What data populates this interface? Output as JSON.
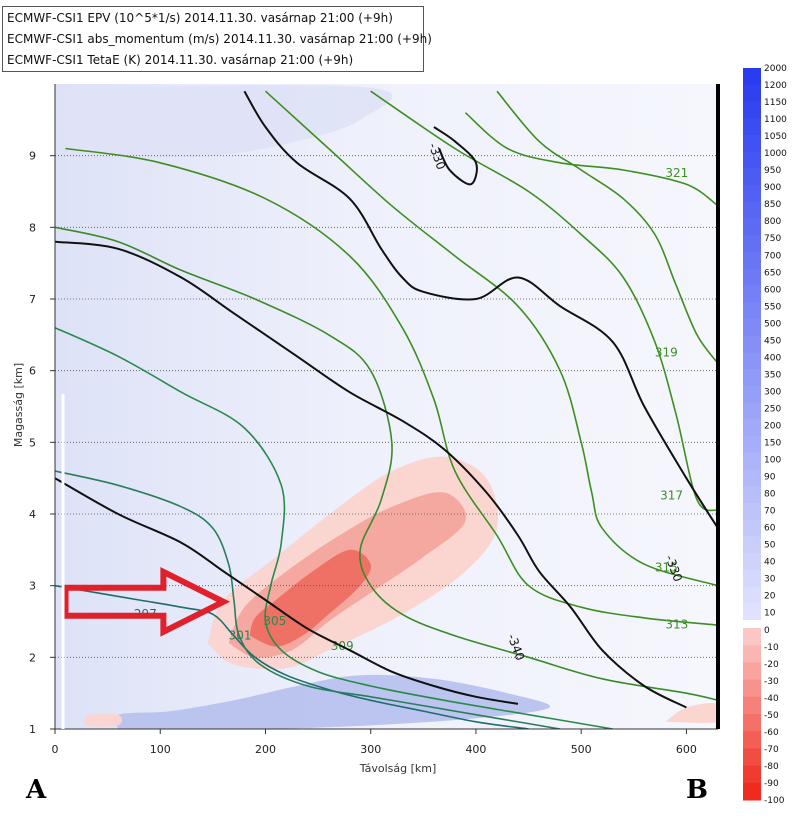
{
  "legend": {
    "lines": [
      "ECMWF-CSI1 EPV (10^5*1/s) 2014.11.30. vasárnap 21:00 (+9h)",
      "ECMWF-CSI1 abs_momentum (m/s) 2014.11.30. vasárnap 21:00 (+9h)",
      "ECMWF-CSI1 TetaE (K) 2014.11.30. vasárnap 21:00 (+9h)"
    ]
  },
  "corners": {
    "left": "A",
    "right": "B"
  },
  "chart_data": {
    "type": "heatmap",
    "xlabel": "Távolság [km]",
    "ylabel": "Magasság [km]",
    "xlim": [
      0,
      630
    ],
    "ylim": [
      1,
      10
    ],
    "x_ticks": [
      0,
      100,
      200,
      300,
      400,
      500,
      600
    ],
    "y_ticks": [
      1,
      2,
      3,
      4,
      5,
      6,
      7,
      8,
      9
    ],
    "grid": "dotted horizontal at each km",
    "colorbar": {
      "labels": [
        "2000",
        "1200",
        "1150",
        "1100",
        "1050",
        "1000",
        "950",
        "900",
        "850",
        "800",
        "750",
        "700",
        "650",
        "600",
        "550",
        "500",
        "450",
        "400",
        "350",
        "300",
        "250",
        "200",
        "150",
        "100",
        "90",
        "80",
        "70",
        "60",
        "50",
        "40",
        "30",
        "20",
        "10",
        "0",
        "-10",
        "-20",
        "-30",
        "-40",
        "-50",
        "-60",
        "-70",
        "-80",
        "-90",
        "-100"
      ],
      "positive_color": "#2a3cf0",
      "negative_color": "#f02a1e"
    },
    "epv_regions": [
      {
        "kind": "positive-strong",
        "color": "#b8c2ee",
        "polygon": [
          [
            60,
            1.0
          ],
          [
            120,
            1.0
          ],
          [
            200,
            1.0
          ],
          [
            300,
            1.05
          ],
          [
            400,
            1.15
          ],
          [
            470,
            1.3
          ],
          [
            430,
            1.5
          ],
          [
            360,
            1.7
          ],
          [
            290,
            1.75
          ],
          [
            230,
            1.6
          ],
          [
            170,
            1.4
          ],
          [
            110,
            1.25
          ],
          [
            60,
            1.2
          ]
        ]
      },
      {
        "kind": "positive-light",
        "color": "#dfe3f7",
        "polygon": [
          [
            10,
            9.95
          ],
          [
            300,
            9.95
          ],
          [
            290,
            9.5
          ],
          [
            230,
            9.2
          ],
          [
            150,
            9.0
          ],
          [
            60,
            9.0
          ],
          [
            10,
            9.2
          ]
        ]
      },
      {
        "kind": "negative-weak",
        "color": "#fbd4cf",
        "polygon": [
          [
            145,
            2.2
          ],
          [
            170,
            1.9
          ],
          [
            220,
            1.85
          ],
          [
            260,
            2.1
          ],
          [
            330,
            2.6
          ],
          [
            390,
            3.2
          ],
          [
            420,
            3.8
          ],
          [
            410,
            4.5
          ],
          [
            370,
            4.8
          ],
          [
            320,
            4.6
          ],
          [
            270,
            4.1
          ],
          [
            210,
            3.4
          ],
          [
            160,
            2.8
          ]
        ]
      },
      {
        "kind": "negative-medium",
        "color": "#f4a59c",
        "polygon": [
          [
            165,
            2.2
          ],
          [
            190,
            2.0
          ],
          [
            225,
            2.1
          ],
          [
            260,
            2.5
          ],
          [
            300,
            2.9
          ],
          [
            350,
            3.4
          ],
          [
            390,
            3.9
          ],
          [
            370,
            4.3
          ],
          [
            320,
            4.1
          ],
          [
            270,
            3.7
          ],
          [
            220,
            3.2
          ],
          [
            180,
            2.7
          ]
        ]
      },
      {
        "kind": "negative-strong",
        "color": "#ee6e62",
        "polygon": [
          [
            185,
            2.3
          ],
          [
            210,
            2.15
          ],
          [
            235,
            2.3
          ],
          [
            260,
            2.6
          ],
          [
            290,
            3.0
          ],
          [
            300,
            3.3
          ],
          [
            280,
            3.5
          ],
          [
            245,
            3.2
          ],
          [
            210,
            2.8
          ],
          [
            190,
            2.55
          ]
        ]
      },
      {
        "kind": "negative-weak",
        "color": "#fbd4cf",
        "polygon": [
          [
            30,
            1.2
          ],
          [
            60,
            1.2
          ],
          [
            60,
            1.05
          ],
          [
            30,
            1.05
          ]
        ]
      },
      {
        "kind": "negative-weak",
        "color": "#fbd4cf",
        "polygon": [
          [
            580,
            1.1
          ],
          [
            630,
            1.1
          ],
          [
            630,
            1.35
          ],
          [
            600,
            1.3
          ]
        ]
      }
    ],
    "thetae_contours": [
      {
        "label": "297",
        "color": "#1e6e6e",
        "points": [
          [
            0,
            3.0
          ],
          [
            40,
            2.9
          ],
          [
            80,
            2.8
          ],
          [
            120,
            2.7
          ],
          [
            150,
            2.6
          ],
          [
            170,
            2.3
          ],
          [
            190,
            2.0
          ],
          [
            220,
            1.75
          ],
          [
            260,
            1.55
          ],
          [
            300,
            1.4
          ],
          [
            350,
            1.25
          ],
          [
            400,
            1.1
          ],
          [
            450,
            1.0
          ]
        ],
        "label_at": [
          75,
          2.55
        ]
      },
      {
        "label": "301",
        "color": "#2a7e5a",
        "points": [
          [
            0,
            4.6
          ],
          [
            60,
            4.4
          ],
          [
            120,
            4.1
          ],
          [
            150,
            3.8
          ],
          [
            165,
            3.3
          ],
          [
            170,
            2.8
          ],
          [
            175,
            2.3
          ],
          [
            195,
            1.9
          ],
          [
            240,
            1.6
          ],
          [
            300,
            1.45
          ],
          [
            360,
            1.3
          ],
          [
            420,
            1.15
          ],
          [
            480,
            1.0
          ]
        ],
        "label_at": [
          165,
          2.25
        ]
      },
      {
        "label": "305",
        "color": "#2a8a4a",
        "points": [
          [
            0,
            6.6
          ],
          [
            60,
            6.2
          ],
          [
            120,
            5.7
          ],
          [
            180,
            5.2
          ],
          [
            215,
            4.4
          ],
          [
            215,
            3.6
          ],
          [
            205,
            3.0
          ],
          [
            200,
            2.5
          ],
          [
            215,
            2.1
          ],
          [
            250,
            1.8
          ],
          [
            300,
            1.6
          ],
          [
            370,
            1.4
          ],
          [
            450,
            1.2
          ],
          [
            530,
            1.0
          ]
        ],
        "label_at": [
          198,
          2.45
        ]
      },
      {
        "label": "309",
        "color": "#3a8a2a",
        "points": [
          [
            0,
            8.0
          ],
          [
            60,
            7.8
          ],
          [
            120,
            7.4
          ],
          [
            190,
            7.0
          ],
          [
            260,
            6.5
          ],
          [
            300,
            6.0
          ],
          [
            320,
            5.0
          ],
          [
            310,
            4.2
          ],
          [
            290,
            3.5
          ],
          [
            300,
            3.0
          ],
          [
            330,
            2.6
          ],
          [
            380,
            2.3
          ],
          [
            450,
            2.0
          ],
          [
            520,
            1.7
          ],
          [
            600,
            1.5
          ],
          [
            630,
            1.4
          ]
        ],
        "label_at": [
          262,
          2.1
        ]
      },
      {
        "label": "313",
        "color": "#3e8e22",
        "points": [
          [
            10,
            9.1
          ],
          [
            100,
            8.9
          ],
          [
            200,
            8.4
          ],
          [
            280,
            7.6
          ],
          [
            330,
            6.6
          ],
          [
            360,
            5.6
          ],
          [
            380,
            4.6
          ],
          [
            420,
            3.7
          ],
          [
            450,
            3.0
          ],
          [
            500,
            2.7
          ],
          [
            560,
            2.55
          ],
          [
            630,
            2.45
          ]
        ],
        "label_at": [
          580,
          2.4
        ]
      },
      {
        "label": "315",
        "color": "#3e8e22",
        "points": [
          [
            200,
            9.9
          ],
          [
            260,
            9.1
          ],
          [
            320,
            8.3
          ],
          [
            380,
            7.6
          ],
          [
            440,
            6.9
          ],
          [
            480,
            6.0
          ],
          [
            500,
            5.0
          ],
          [
            510,
            4.3
          ],
          [
            520,
            3.8
          ],
          [
            560,
            3.3
          ],
          [
            630,
            3.0
          ]
        ],
        "label_at": [
          570,
          3.2
        ]
      },
      {
        "label": "317",
        "color": "#3e8e22",
        "points": [
          [
            300,
            9.9
          ],
          [
            380,
            9.1
          ],
          [
            450,
            8.5
          ],
          [
            500,
            7.9
          ],
          [
            540,
            7.3
          ],
          [
            570,
            6.4
          ],
          [
            590,
            5.4
          ],
          [
            610,
            4.2
          ],
          [
            630,
            4.05
          ]
        ],
        "label_at": [
          575,
          4.2
        ]
      },
      {
        "label": "319",
        "color": "#3e8e22",
        "points": [
          [
            420,
            9.9
          ],
          [
            460,
            9.2
          ],
          [
            500,
            8.8
          ],
          [
            540,
            8.4
          ],
          [
            570,
            7.9
          ],
          [
            590,
            7.2
          ],
          [
            610,
            6.5
          ],
          [
            630,
            6.1
          ]
        ],
        "label_at": [
          570,
          6.2
        ]
      },
      {
        "label": "321",
        "color": "#3e8e22",
        "points": [
          [
            390,
            9.6
          ],
          [
            430,
            9.1
          ],
          [
            480,
            8.9
          ],
          [
            540,
            8.8
          ],
          [
            600,
            8.6
          ],
          [
            630,
            8.3
          ]
        ],
        "label_at": [
          580,
          8.7
        ]
      }
    ],
    "momentum_contours": [
      {
        "label": "-330",
        "points": [
          [
            180,
            9.9
          ],
          [
            200,
            9.4
          ],
          [
            230,
            8.9
          ],
          [
            280,
            8.4
          ],
          [
            310,
            7.7
          ],
          [
            330,
            7.3
          ],
          [
            350,
            7.1
          ],
          [
            400,
            7.0
          ],
          [
            440,
            7.3
          ],
          [
            480,
            6.9
          ],
          [
            530,
            6.4
          ],
          [
            560,
            5.5
          ],
          [
            600,
            4.5
          ],
          [
            630,
            3.8
          ]
        ],
        "label_at": [
          580,
          3.4
        ]
      },
      {
        "label": "-330",
        "points": [
          [
            360,
            9.4
          ],
          [
            380,
            9.2
          ],
          [
            400,
            8.9
          ],
          [
            395,
            8.6
          ],
          [
            375,
            8.8
          ],
          [
            365,
            9.1
          ]
        ],
        "label_at": [
          355,
          9.15
        ]
      },
      {
        "label": "-340",
        "points": [
          [
            0,
            4.5
          ],
          [
            60,
            4.0
          ],
          [
            120,
            3.6
          ],
          [
            160,
            3.2
          ],
          [
            200,
            2.8
          ],
          [
            240,
            2.4
          ],
          [
            280,
            2.1
          ],
          [
            320,
            1.8
          ],
          [
            360,
            1.6
          ],
          [
            400,
            1.45
          ],
          [
            440,
            1.35
          ]
        ],
        "label_at": [
          430,
          2.3
        ]
      },
      {
        "label": "",
        "points": [
          [
            0,
            7.8
          ],
          [
            60,
            7.7
          ],
          [
            120,
            7.3
          ],
          [
            170,
            6.8
          ],
          [
            230,
            6.2
          ],
          [
            280,
            5.7
          ],
          [
            330,
            5.3
          ],
          [
            370,
            4.9
          ],
          [
            410,
            4.3
          ],
          [
            440,
            3.7
          ],
          [
            460,
            3.2
          ],
          [
            490,
            2.7
          ],
          [
            520,
            2.1
          ],
          [
            560,
            1.6
          ],
          [
            600,
            1.3
          ]
        ],
        "label_at": null
      }
    ],
    "annotation": {
      "kind": "arrow",
      "color": "#e0202a",
      "from": [
        10,
        2.8
      ],
      "to": [
        160,
        2.75
      ]
    }
  }
}
